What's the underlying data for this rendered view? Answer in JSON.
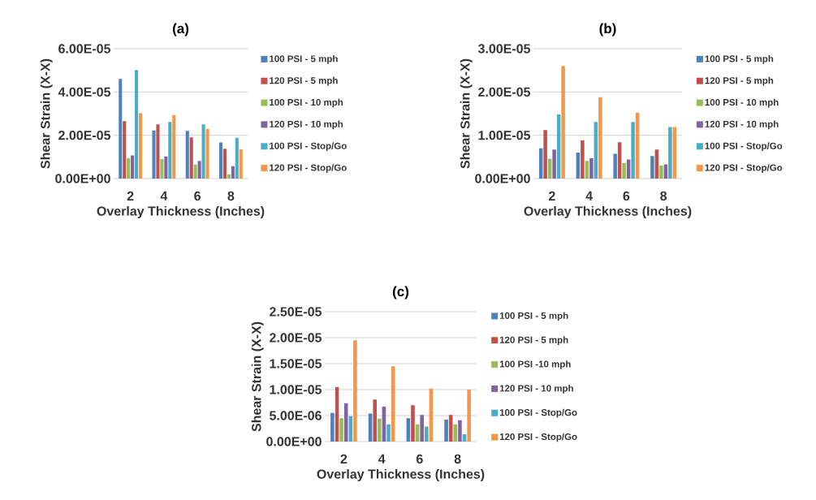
{
  "chart_data": [
    {
      "type": "bar",
      "title": "(a)",
      "xlabel": "Overlay Thickness (Inches)",
      "ylabel": "Shear Strain (X-X)",
      "categories": [
        "2",
        "4",
        "6",
        "8"
      ],
      "ylim": [
        0,
        6e-05
      ],
      "yticks": [
        {
          "value": 0,
          "label": "0.00E+00"
        },
        {
          "value": 2e-05,
          "label": "2.00E-05"
        },
        {
          "value": 4e-05,
          "label": "4.00E-05"
        },
        {
          "value": 6e-05,
          "label": "6.00E-05"
        }
      ],
      "grid": "y",
      "legend": "right",
      "series": [
        {
          "name": "100 PSI - 5 mph",
          "color": "#4f81bd",
          "values": [
            4.6e-05,
            2.22e-05,
            2.2e-05,
            1.67e-05
          ]
        },
        {
          "name": "120 PSI - 5 mph",
          "color": "#c0504d",
          "values": [
            2.65e-05,
            2.5e-05,
            1.9e-05,
            1.38e-05
          ]
        },
        {
          "name": "100 PSI - 10 mph",
          "color": "#9bbb59",
          "values": [
            9.5e-06,
            9e-06,
            6.5e-06,
            2e-06
          ]
        },
        {
          "name": "120 PSI - 10 mph",
          "color": "#8064a2",
          "values": [
            1.07e-05,
            1.02e-05,
            8.2e-06,
            5.7e-06
          ]
        },
        {
          "name": "100 PSI - Stop/Go",
          "color": "#4bacc6",
          "values": [
            5.02e-05,
            2.62e-05,
            2.5e-05,
            1.88e-05
          ]
        },
        {
          "name": "120 PSI - Stop/Go",
          "color": "#f79646",
          "values": [
            3.02e-05,
            2.93e-05,
            2.3e-05,
            1.35e-05
          ]
        }
      ]
    },
    {
      "type": "bar",
      "title": "(b)",
      "xlabel": "Overlay Thickness (Inches)",
      "ylabel": "Shear Strain (X-X)",
      "categories": [
        "2",
        "4",
        "6",
        "8"
      ],
      "ylim": [
        0,
        3e-05
      ],
      "yticks": [
        {
          "value": 0,
          "label": "0.00E+00"
        },
        {
          "value": 1e-05,
          "label": "1.00E-05"
        },
        {
          "value": 2e-05,
          "label": "2.00E-05"
        },
        {
          "value": 3e-05,
          "label": "3.00E-05"
        }
      ],
      "grid": "y",
      "legend": "right",
      "series": [
        {
          "name": "100 PSI - 5 mph",
          "color": "#4f81bd",
          "values": [
            7e-06,
            6e-06,
            5.7e-06,
            5.2e-06
          ]
        },
        {
          "name": "120 PSI - 5 mph",
          "color": "#c0504d",
          "values": [
            1.12e-05,
            8.8e-06,
            8.4e-06,
            6.7e-06
          ]
        },
        {
          "name": "100 PSI - 10 mph",
          "color": "#9bbb59",
          "values": [
            4.6e-06,
            4.1e-06,
            3.6e-06,
            3e-06
          ]
        },
        {
          "name": "120 PSI - 10 mph",
          "color": "#8064a2",
          "values": [
            6.7e-06,
            4.7e-06,
            4.4e-06,
            3.3e-06
          ]
        },
        {
          "name": "100 PSI - Stop/Go",
          "color": "#4bacc6",
          "values": [
            1.48e-05,
            1.31e-05,
            1.31e-05,
            1.19e-05
          ]
        },
        {
          "name": "120 PSI - Stop/Go",
          "color": "#f79646",
          "values": [
            2.6e-05,
            1.88e-05,
            1.52e-05,
            1.19e-05
          ]
        }
      ]
    },
    {
      "type": "bar",
      "title": "(c)",
      "xlabel": "Overlay Thickness (Inches)",
      "ylabel": "Shear Strain (X-X)",
      "categories": [
        "2",
        "4",
        "6",
        "8"
      ],
      "ylim": [
        0,
        2.5e-05
      ],
      "yticks": [
        {
          "value": 0,
          "label": "0.00E+00"
        },
        {
          "value": 5e-06,
          "label": "5.00E-06"
        },
        {
          "value": 1e-05,
          "label": "1.00E-05"
        },
        {
          "value": 1.5e-05,
          "label": "1.50E-05"
        },
        {
          "value": 2e-05,
          "label": "2.00E-05"
        },
        {
          "value": 2.5e-05,
          "label": "2.50E-05"
        }
      ],
      "grid": "y",
      "legend": "right",
      "series": [
        {
          "name": "100 PSI - 5 mph",
          "color": "#4f81bd",
          "values": [
            5.5e-06,
            5.4e-06,
            4.5e-06,
            4.2e-06
          ]
        },
        {
          "name": "120 PSI - 5 mph",
          "color": "#c0504d",
          "values": [
            1.05e-05,
            8.1e-06,
            7e-06,
            5.1e-06
          ]
        },
        {
          "name": "100 PSI -10 mph",
          "color": "#9bbb59",
          "values": [
            4.5e-06,
            4.4e-06,
            3.3e-06,
            3.3e-06
          ]
        },
        {
          "name": "120 PSI - 10 mph",
          "color": "#8064a2",
          "values": [
            7.4e-06,
            6.7e-06,
            5.1e-06,
            4.1e-06
          ]
        },
        {
          "name": "100 PSI - Stop/Go",
          "color": "#4bacc6",
          "values": [
            4.9e-06,
            3.3e-06,
            2.9e-06,
            1.4e-06
          ]
        },
        {
          "name": "120 PSI - Stop/Go",
          "color": "#f79646",
          "values": [
            1.95e-05,
            1.45e-05,
            1.02e-05,
            1e-05
          ]
        }
      ]
    }
  ]
}
